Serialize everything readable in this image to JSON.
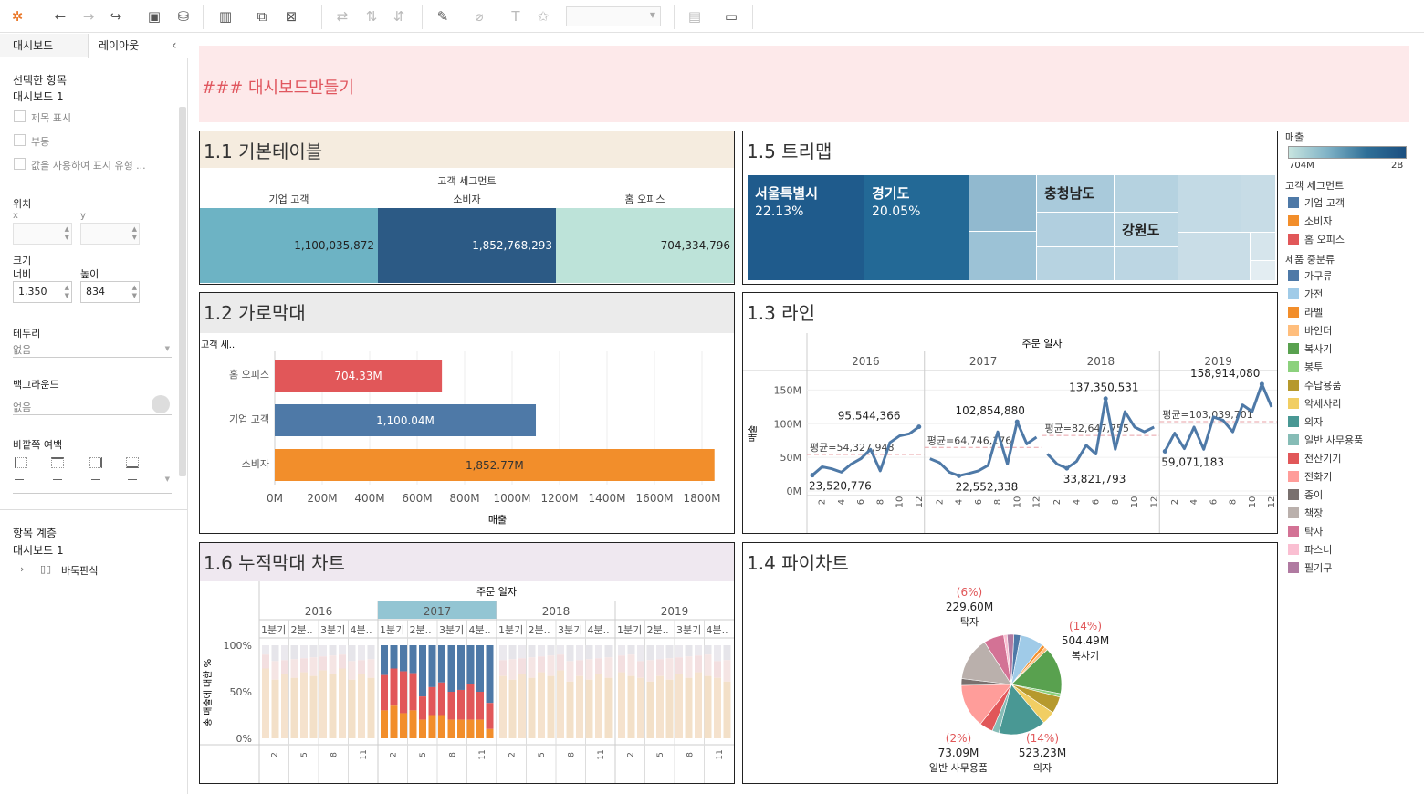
{
  "left": {
    "tab_dashboard": "대시보드",
    "tab_layout": "레이아웃",
    "collapse": "‹",
    "selected_title": "선택한 항목",
    "selected_value": "대시보드 1",
    "opt_title": "제목 표시",
    "opt_float": "부동",
    "opt_show_values": "값을 사용하여 표시 유형 ...",
    "pos_title": "위치",
    "x_label": "x",
    "y_label": "y",
    "size_title": "크기",
    "width_label": "너비",
    "height_label": "높이",
    "width_value": "1,350",
    "height_value": "834",
    "border_title": "테두리",
    "border_value": "없음",
    "bg_title": "백그라운드",
    "bg_value": "없음",
    "padding_title": "바깥쪽 여백",
    "hier_title": "항목 계층",
    "hier_root": "대시보드 1",
    "hier_child": "바둑판식"
  },
  "header_text": "### 대시보드만들기",
  "p11": {
    "title": "1.1 기본테이블",
    "group": "고객 세그먼트",
    "cols": [
      "기업 고객",
      "소비자",
      "홈 오피스"
    ],
    "values": [
      "1,100,035,872",
      "1,852,768,293",
      "704,334,796"
    ],
    "colors": [
      "#6db3c4",
      "#2c5a85",
      "#bde3d9"
    ]
  },
  "p12": {
    "title": "1.2 가로막대",
    "axis_label": "고객 세..",
    "x_title": "매출",
    "x_ticks": [
      "0M",
      "200M",
      "400M",
      "600M",
      "800M",
      "1000M",
      "1200M",
      "1400M",
      "1600M",
      "1800M"
    ]
  },
  "p13": {
    "title": "1.3 라인",
    "header": "주문 일자",
    "y_title": "매출",
    "y_ticks": [
      "150M",
      "100M",
      "50M",
      "0M"
    ]
  },
  "p14": {
    "title": "1.4 파이차트"
  },
  "p15": {
    "title": "1.5 트리맵",
    "labels": [
      {
        "name": "서울특별시",
        "pct": "22.13%"
      },
      {
        "name": "경기도",
        "pct": "20.05%"
      },
      {
        "name": "충청남도"
      },
      {
        "name": "강원도"
      }
    ]
  },
  "p16": {
    "title": "1.6 누적막대 차트",
    "header": "주문 일자",
    "y_title": "총 매출에 대한 %",
    "y_ticks": [
      "100%",
      "50%",
      "0%"
    ],
    "years": [
      "2016",
      "2017",
      "2018",
      "2019"
    ],
    "quarters": [
      "1분기",
      "2분..",
      "3분기",
      "4분.."
    ],
    "months": [
      "2",
      "5",
      "8",
      "11"
    ]
  },
  "legend": {
    "sales_title": "매출",
    "sales_min": "704M",
    "sales_max": "2B",
    "segment_title": "고객 세그먼트",
    "segment_items": [
      {
        "name": "기업 고객",
        "color": "#4e79a7"
      },
      {
        "name": "소비자",
        "color": "#f28e2b"
      },
      {
        "name": "홈 오피스",
        "color": "#e15759"
      }
    ],
    "cat_title": "제품 중분류",
    "cat_items": [
      {
        "name": "가구류",
        "color": "#4e79a7"
      },
      {
        "name": "가전",
        "color": "#a0cbe8"
      },
      {
        "name": "라벨",
        "color": "#f28e2b"
      },
      {
        "name": "바인더",
        "color": "#ffbe7d"
      },
      {
        "name": "복사기",
        "color": "#59a14f"
      },
      {
        "name": "봉투",
        "color": "#8cd17d"
      },
      {
        "name": "수납용품",
        "color": "#b6992d"
      },
      {
        "name": "악세사리",
        "color": "#f1ce63"
      },
      {
        "name": "의자",
        "color": "#499894"
      },
      {
        "name": "일반 사무용품",
        "color": "#86bcb6"
      },
      {
        "name": "전산기기",
        "color": "#e15759"
      },
      {
        "name": "전화기",
        "color": "#ff9d9a"
      },
      {
        "name": "종이",
        "color": "#79706e"
      },
      {
        "name": "책장",
        "color": "#bab0ac"
      },
      {
        "name": "탁자",
        "color": "#d37295"
      },
      {
        "name": "파스너",
        "color": "#fabfd2"
      },
      {
        "name": "필기구",
        "color": "#b07aa1"
      }
    ]
  },
  "chart_data": [
    {
      "type": "table",
      "title": "1.1 기본테이블",
      "columns": [
        "기업 고객",
        "소비자",
        "홈 오피스"
      ],
      "values": [
        1100035872,
        1852768293,
        704334796
      ]
    },
    {
      "type": "bar",
      "title": "1.2 가로막대",
      "categories": [
        "홈 오피스",
        "기업 고객",
        "소비자"
      ],
      "values": [
        704.33,
        1100.04,
        1852.77
      ],
      "labels": [
        "704.33M",
        "1,100.04M",
        "1,852.77M"
      ],
      "colors": [
        "#e15759",
        "#4e79a7",
        "#f28e2b"
      ],
      "xlim": [
        0,
        1900
      ],
      "xlabel": "매출",
      "ylabel": "고객 세.."
    },
    {
      "type": "line",
      "title": "1.3 라인",
      "years": [
        "2016",
        "2017",
        "2018",
        "2019"
      ],
      "month_ticks": [
        "2",
        "4",
        "6",
        "8",
        "10",
        "12"
      ],
      "ylim": [
        0,
        175
      ],
      "series": [
        {
          "year": "2016",
          "values": [
            23.5,
            36,
            33,
            28,
            40,
            48,
            62,
            30,
            72,
            82,
            85,
            95.5
          ],
          "avg": 54.33,
          "avg_label": "평균=54,327,948",
          "min_label": "23,520,776",
          "max_label": "95,544,366"
        },
        {
          "year": "2017",
          "values": [
            48,
            42,
            28,
            22.6,
            26,
            30,
            38,
            88,
            40,
            102.9,
            70,
            80
          ],
          "avg": 64.75,
          "avg_label": "평균=64,746,176",
          "min_label": "22,552,338",
          "max_label": "102,854,880"
        },
        {
          "year": "2018",
          "values": [
            55,
            40,
            33.8,
            44,
            68,
            55,
            137.4,
            62,
            118,
            95,
            88,
            95
          ],
          "avg": 82.65,
          "avg_label": "평균=82,647,755",
          "min_label": "33,821,793",
          "max_label": "137,350,531"
        },
        {
          "year": "2019",
          "values": [
            59,
            86,
            63,
            95,
            62,
            110,
            105,
            88,
            128,
            118,
            158.9,
            125
          ],
          "avg": 103.04,
          "avg_label": "평균=103,039,701",
          "min_label": "59,071,183",
          "max_label": "158,914,080"
        }
      ]
    },
    {
      "type": "pie",
      "title": "1.4 파이차트",
      "slices": [
        {
          "name": "가구류",
          "value": 2,
          "color": "#4e79a7"
        },
        {
          "name": "가전",
          "value": 7,
          "color": "#a0cbe8"
        },
        {
          "name": "라벨",
          "value": 1,
          "color": "#f28e2b"
        },
        {
          "name": "바인더",
          "value": 1,
          "color": "#ffbe7d"
        },
        {
          "name": "복사기",
          "value": 14,
          "color": "#59a14f",
          "label": "504.49M",
          "pct": "(14%)"
        },
        {
          "name": "봉투",
          "value": 1,
          "color": "#8cd17d"
        },
        {
          "name": "수납용품",
          "value": 5,
          "color": "#b6992d"
        },
        {
          "name": "악세사리",
          "value": 4,
          "color": "#f1ce63"
        },
        {
          "name": "의자",
          "value": 14,
          "color": "#499894",
          "label": "523.23M",
          "pct": "(14%)"
        },
        {
          "name": "일반 사무용품",
          "value": 2,
          "color": "#86bcb6",
          "label": "73.09M",
          "pct": "(2%)"
        },
        {
          "name": "전산기기",
          "value": 4,
          "color": "#e15759"
        },
        {
          "name": "전화기",
          "value": 13,
          "color": "#ff9d9a"
        },
        {
          "name": "종이",
          "value": 2,
          "color": "#79706e"
        },
        {
          "name": "책장",
          "value": 13,
          "color": "#bab0ac"
        },
        {
          "name": "탁자",
          "value": 6,
          "color": "#d37295",
          "label": "229.60M",
          "pct": "(6%)"
        },
        {
          "name": "파스너",
          "value": 1,
          "color": "#fabfd2"
        },
        {
          "name": "필기구",
          "value": 2,
          "color": "#b07aa1"
        }
      ]
    },
    {
      "type": "heatmap",
      "title": "1.5 트리맵",
      "value_range": [
        "704M",
        "2B"
      ]
    },
    {
      "type": "bar",
      "title": "1.6 누적막대 차트",
      "highlight_year": "2017",
      "stack_pct_2017": [
        [
          32,
          38,
          30
        ],
        [
          25,
          40,
          35
        ],
        [
          28,
          45,
          27
        ],
        [
          30,
          40,
          30
        ],
        [
          55,
          25,
          20
        ],
        [
          45,
          30,
          25
        ],
        [
          40,
          35,
          25
        ],
        [
          50,
          30,
          20
        ],
        [
          48,
          32,
          20
        ],
        [
          42,
          38,
          20
        ],
        [
          50,
          30,
          20
        ],
        [
          62,
          28,
          10
        ]
      ]
    }
  ]
}
